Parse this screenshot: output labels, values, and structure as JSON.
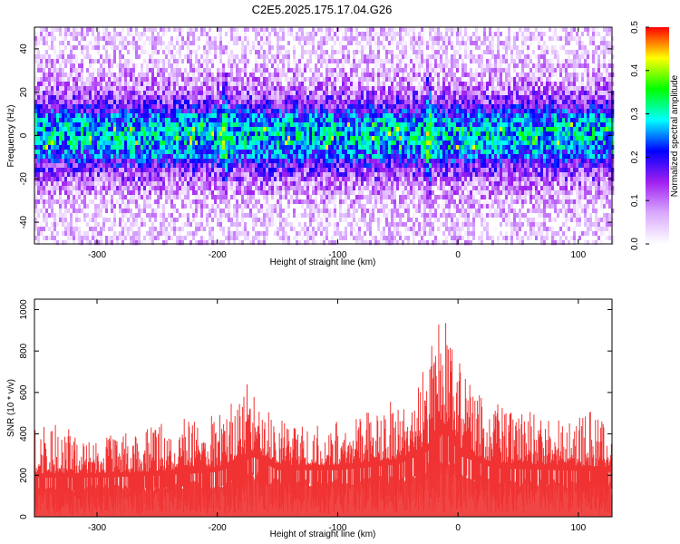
{
  "title": "C2E5.2025.175.17.04.G26",
  "chart_data": [
    {
      "type": "heatmap",
      "xlabel": "Height of straight line (km)",
      "ylabel": "Frequency (Hz)",
      "xlim": [
        -352,
        128
      ],
      "ylim": [
        -50,
        50
      ],
      "xticks": [
        -300,
        -200,
        -100,
        0,
        100
      ],
      "yticks": [
        -40,
        -20,
        0,
        20,
        40
      ],
      "colorbar": {
        "label": "Normalized spectral amplitude",
        "range": [
          0,
          0.5
        ],
        "ticks": [
          "0.0",
          "0.1",
          "0.2",
          "0.3",
          "0.4",
          "0.5"
        ],
        "colors": [
          "#ffffff",
          "#d9a9ff",
          "#a020f0",
          "#0000ff",
          "#00ffff",
          "#00ff00",
          "#ffff00",
          "#ff0000"
        ]
      },
      "band_center_hz": 0,
      "band_halfwidth_hz": 10,
      "notable_features_km": [
        -195,
        -25
      ]
    },
    {
      "type": "area",
      "xlabel": "Height of straight line (km)",
      "ylabel": "SNR (10 * v/v)",
      "xlim": [
        -352,
        128
      ],
      "ylim": [
        0,
        1050
      ],
      "xticks": [
        -300,
        -200,
        -100,
        0,
        100
      ],
      "yticks": [
        0,
        200,
        400,
        600,
        800,
        1000
      ],
      "color": "#f03232",
      "envelope": {
        "x": [
          -352,
          -330,
          -310,
          -290,
          -270,
          -250,
          -230,
          -210,
          -190,
          -180,
          -170,
          -160,
          -150,
          -130,
          -110,
          -90,
          -70,
          -50,
          -35,
          -25,
          -18,
          -12,
          -8,
          -3,
          5,
          15,
          30,
          50,
          70,
          90,
          110,
          128
        ],
        "y": [
          430,
          450,
          380,
          390,
          420,
          450,
          470,
          500,
          560,
          620,
          680,
          520,
          480,
          460,
          450,
          480,
          520,
          570,
          640,
          780,
          900,
          1000,
          950,
          820,
          700,
          620,
          560,
          520,
          500,
          510,
          520,
          500
        ]
      },
      "baseline": {
        "x": [
          -352,
          -300,
          -250,
          -200,
          -180,
          -170,
          -150,
          -100,
          -50,
          -25,
          -12,
          -5,
          0,
          30,
          80,
          128
        ],
        "y": [
          210,
          210,
          220,
          240,
          290,
          320,
          250,
          250,
          280,
          350,
          450,
          420,
          330,
          260,
          250,
          240
        ]
      }
    }
  ]
}
